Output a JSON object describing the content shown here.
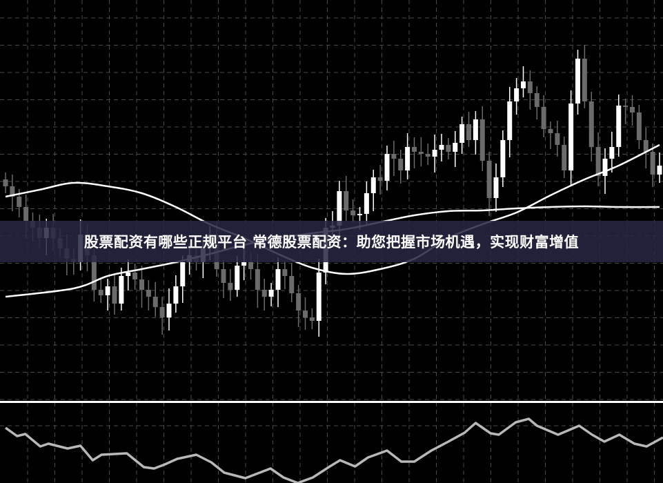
{
  "title_banner": "股票配资有哪些正规平台 常德股票配资：助您把握市场机遇，实现财富增值",
  "colors": {
    "background": "#000000",
    "bullish": "#ffffff",
    "bearish": "#6b6b6b",
    "grid": "#4a4a4a",
    "ma": "#ffffff",
    "oscillator": "#b8b8b8",
    "banner": "#262642"
  },
  "chart_data": [
    {
      "type": "candlestick",
      "grid": true,
      "ylim": [
        120,
        700
      ],
      "close": [
        430,
        415,
        400,
        380,
        370,
        355,
        370,
        355,
        340,
        325,
        320,
        360,
        330,
        280,
        272,
        285,
        260,
        300,
        305,
        295,
        280,
        270,
        255,
        240,
        260,
        285,
        320,
        330,
        320,
        340,
        360,
        310,
        290,
        280,
        315,
        320,
        310,
        280,
        270,
        280,
        310,
        300,
        275,
        250,
        240,
        235,
        305,
        370,
        373,
        423,
        395,
        388,
        390,
        420,
        443,
        438,
        477,
        470,
        453,
        487,
        480,
        477,
        473,
        483,
        490,
        480,
        493,
        520,
        497,
        527,
        467,
        413,
        443,
        497,
        553,
        572,
        582,
        565,
        545,
        513,
        507,
        490,
        453,
        550,
        615,
        553,
        487,
        445,
        470,
        487,
        547,
        545,
        537,
        497,
        480,
        447,
        460
      ],
      "first_open": 440,
      "ma_fast": [
        [
          0,
          415
        ],
        [
          5,
          425
        ],
        [
          10,
          435
        ],
        [
          15,
          430
        ],
        [
          20,
          420
        ],
        [
          25,
          400
        ],
        [
          30,
          375
        ],
        [
          35,
          355
        ],
        [
          40,
          332
        ],
        [
          45,
          312
        ],
        [
          50,
          303
        ],
        [
          55,
          310
        ],
        [
          60,
          325
        ],
        [
          65,
          355
        ],
        [
          70,
          375
        ],
        [
          75,
          392
        ],
        [
          80,
          417
        ],
        [
          85,
          440
        ],
        [
          90,
          460
        ],
        [
          96,
          490
        ]
      ],
      "ma_slow": [
        [
          0,
          270
        ],
        [
          10,
          282
        ],
        [
          15,
          300
        ],
        [
          20,
          310
        ],
        [
          25,
          320
        ],
        [
          30,
          332
        ],
        [
          35,
          345
        ],
        [
          40,
          355
        ],
        [
          45,
          362
        ],
        [
          50,
          368
        ],
        [
          55,
          378
        ],
        [
          60,
          388
        ],
        [
          65,
          394
        ],
        [
          70,
          395
        ],
        [
          75,
          398
        ],
        [
          80,
          400
        ],
        [
          85,
          401
        ],
        [
          90,
          400
        ],
        [
          96,
          400
        ]
      ]
    },
    {
      "type": "line",
      "grid": true,
      "ylim": [
        0,
        122
      ],
      "level": 83,
      "points": [
        [
          0,
          80
        ],
        [
          1.7,
          68
        ],
        [
          2.9,
          71
        ],
        [
          5.1,
          53
        ],
        [
          6.3,
          57
        ],
        [
          9.1,
          50
        ],
        [
          11,
          54
        ],
        [
          12.8,
          33
        ],
        [
          14.1,
          41
        ],
        [
          17.8,
          43
        ],
        [
          20.3,
          23
        ],
        [
          21.8,
          21
        ],
        [
          23.4,
          27
        ],
        [
          25.2,
          35
        ],
        [
          28,
          41
        ],
        [
          30.2,
          30
        ],
        [
          32.1,
          15
        ],
        [
          35.2,
          7
        ],
        [
          38.9,
          21
        ],
        [
          40.8,
          8
        ],
        [
          42.9,
          0
        ],
        [
          45.1,
          8
        ],
        [
          47.6,
          24
        ],
        [
          49.1,
          33
        ],
        [
          51.3,
          24
        ],
        [
          53.2,
          37
        ],
        [
          56,
          47
        ],
        [
          58.1,
          31
        ],
        [
          60,
          31
        ],
        [
          62.5,
          47
        ],
        [
          65,
          60
        ],
        [
          67.4,
          73
        ],
        [
          69,
          87
        ],
        [
          71.2,
          72
        ],
        [
          72.4,
          70
        ],
        [
          74.9,
          88
        ],
        [
          76.8,
          93
        ],
        [
          78,
          83
        ],
        [
          81.1,
          70
        ],
        [
          84.2,
          83
        ],
        [
          86.1,
          70
        ],
        [
          87.9,
          60
        ],
        [
          90.1,
          70
        ],
        [
          92.3,
          57
        ],
        [
          94.1,
          53
        ],
        [
          96.5,
          66
        ]
      ]
    }
  ]
}
